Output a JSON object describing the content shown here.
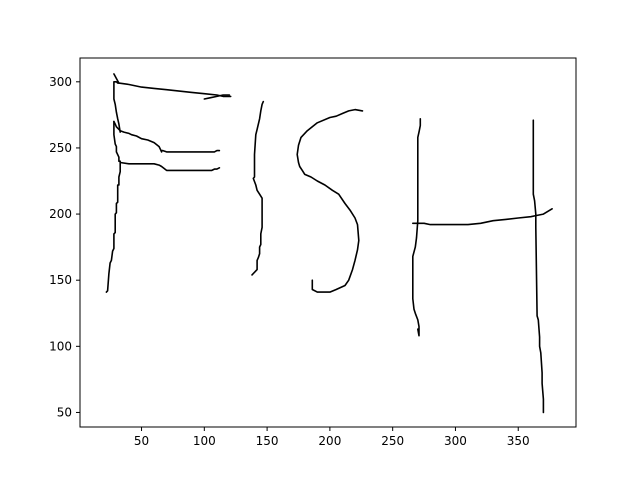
{
  "chart_data": {
    "type": "line",
    "title": "",
    "xlabel": "",
    "ylabel": "",
    "xlim": [
      1,
      396
    ],
    "ylim": [
      39,
      318
    ],
    "xticks": [
      50,
      100,
      150,
      200,
      250,
      300,
      350
    ],
    "yticks": [
      50,
      100,
      150,
      200,
      250,
      300
    ],
    "grid": false,
    "legend": "none",
    "line_color": "#000000",
    "series": [
      {
        "x": [
          22,
          23,
          24,
          25,
          26,
          27,
          28,
          28,
          28,
          29,
          29,
          29,
          30,
          30,
          31,
          31,
          31,
          32,
          32,
          33,
          33,
          33,
          32,
          32,
          32,
          30,
          30,
          29,
          28,
          28
        ],
        "y": [
          141,
          142,
          155,
          163,
          165,
          172,
          174,
          182,
          185,
          186,
          193,
          200,
          201,
          208,
          209,
          216,
          222,
          222,
          228,
          232,
          236,
          240,
          240,
          242,
          243,
          247,
          251,
          253,
          260,
          270
        ]
      },
      {
        "x": [
          28,
          29,
          30,
          33,
          36,
          40,
          42,
          46,
          50,
          55,
          60,
          64,
          65,
          66,
          66,
          67,
          70,
          80,
          90,
          100,
          105,
          108,
          110,
          112
        ],
        "y": [
          270,
          268,
          266,
          263,
          262,
          261,
          260,
          259,
          257,
          256,
          254,
          251,
          249,
          247,
          248,
          248,
          247,
          247,
          247,
          247,
          247,
          247,
          248,
          248
        ]
      },
      {
        "x": [
          33,
          40,
          50,
          60,
          64,
          66,
          70,
          80,
          90,
          100,
          106,
          108,
          110,
          112
        ],
        "y": [
          239,
          238,
          238,
          238,
          237,
          236,
          233,
          233,
          233,
          233,
          233,
          234,
          234,
          235
        ]
      },
      {
        "x": [
          33,
          32,
          31,
          30,
          29,
          28,
          28,
          28,
          28,
          29,
          30,
          31,
          32
        ],
        "y": [
          262,
          268,
          272,
          277,
          283,
          287,
          291,
          294,
          300,
          300,
          300,
          299,
          299
        ]
      },
      {
        "x": [
          28,
          32,
          40,
          50,
          60,
          70,
          80,
          90,
          100,
          110,
          115,
          120,
          121
        ],
        "y": [
          306,
          299,
          298,
          296,
          295,
          294,
          293,
          292,
          291,
          290,
          289,
          289,
          289
        ]
      },
      {
        "x": [
          100,
          105,
          110,
          115,
          120
        ],
        "y": [
          287,
          288,
          289,
          290,
          290
        ]
      },
      {
        "x": [
          138,
          140,
          142,
          142,
          143,
          144,
          144,
          145,
          145,
          145,
          146,
          146,
          146,
          146,
          144,
          142,
          141,
          139,
          140,
          140,
          140,
          141,
          142,
          144,
          145,
          146,
          147
        ],
        "y": [
          154,
          156,
          158,
          165,
          167,
          170,
          175,
          177,
          180,
          185,
          190,
          200,
          207,
          212,
          215,
          218,
          222,
          227,
          228,
          235,
          245,
          260,
          264,
          272,
          278,
          283,
          285
        ]
      },
      {
        "x": [
          226,
          220,
          215,
          210,
          205,
          200,
          190,
          182,
          177,
          175,
          174,
          175,
          176,
          178,
          180,
          185,
          190,
          196,
          202,
          207,
          212,
          216,
          220,
          222,
          223,
          222,
          220,
          218,
          215,
          212,
          205,
          200,
          190,
          186,
          186
        ],
        "y": [
          278,
          279,
          278,
          276,
          274,
          273,
          269,
          263,
          258,
          252,
          245,
          239,
          236,
          233,
          230,
          228,
          225,
          222,
          218,
          215,
          208,
          203,
          197,
          192,
          180,
          173,
          165,
          158,
          150,
          146,
          143,
          141,
          141,
          143,
          150
        ]
      },
      {
        "x": [
          272,
          272,
          271,
          270,
          270,
          270,
          270,
          270,
          269,
          268,
          266,
          266,
          266,
          267,
          268,
          270,
          271,
          271,
          270
        ],
        "y": [
          272,
          267,
          262,
          258,
          245,
          225,
          210,
          195,
          182,
          175,
          168,
          160,
          136,
          128,
          125,
          120,
          115,
          108,
          113
        ]
      },
      {
        "x": [
          266,
          275,
          280,
          290,
          300,
          310,
          320,
          330,
          340,
          350,
          360,
          365,
          370,
          377
        ],
        "y": [
          193,
          193,
          192,
          192,
          192,
          192,
          193,
          195,
          196,
          197,
          198,
          199,
          200,
          204
        ]
      },
      {
        "x": [
          362,
          362,
          362,
          363,
          364,
          364,
          364,
          365,
          366,
          367,
          367,
          367,
          368,
          369,
          369,
          370,
          370
        ],
        "y": [
          271,
          250,
          215,
          210,
          200,
          195,
          190,
          123,
          120,
          107,
          104,
          100,
          95,
          80,
          72,
          60,
          50
        ]
      }
    ]
  }
}
